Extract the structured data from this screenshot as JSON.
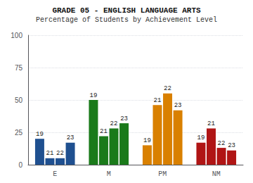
{
  "chart_data": {
    "type": "bar",
    "title": "GRADE 05 - ENGLISH LANGUAGE ARTS",
    "subtitle": "Percentage of Students by Achievement Level",
    "categories": [
      "E",
      "M",
      "PM",
      "NM"
    ],
    "series": [
      {
        "name": "19",
        "colors": [
          "#1f5090",
          "#1a7a1a",
          "#d98000",
          "#b01515"
        ],
        "values": [
          20,
          50,
          15,
          17
        ]
      },
      {
        "name": "21",
        "colors": [
          "#1f5090",
          "#1a7a1a",
          "#d98000",
          "#b01515"
        ],
        "values": [
          5,
          22,
          46,
          28
        ]
      },
      {
        "name": "22",
        "colors": [
          "#1f5090",
          "#1a7a1a",
          "#d98000",
          "#b01515"
        ],
        "values": [
          5,
          28,
          55,
          13
        ]
      },
      {
        "name": "23",
        "colors": [
          "#1f5090",
          "#1a7a1a",
          "#d98000",
          "#b01515"
        ],
        "values": [
          17,
          32,
          42,
          11
        ]
      }
    ],
    "ylim": [
      0,
      100
    ],
    "yticks": [
      0,
      25,
      50,
      75,
      100
    ],
    "grid": true
  }
}
